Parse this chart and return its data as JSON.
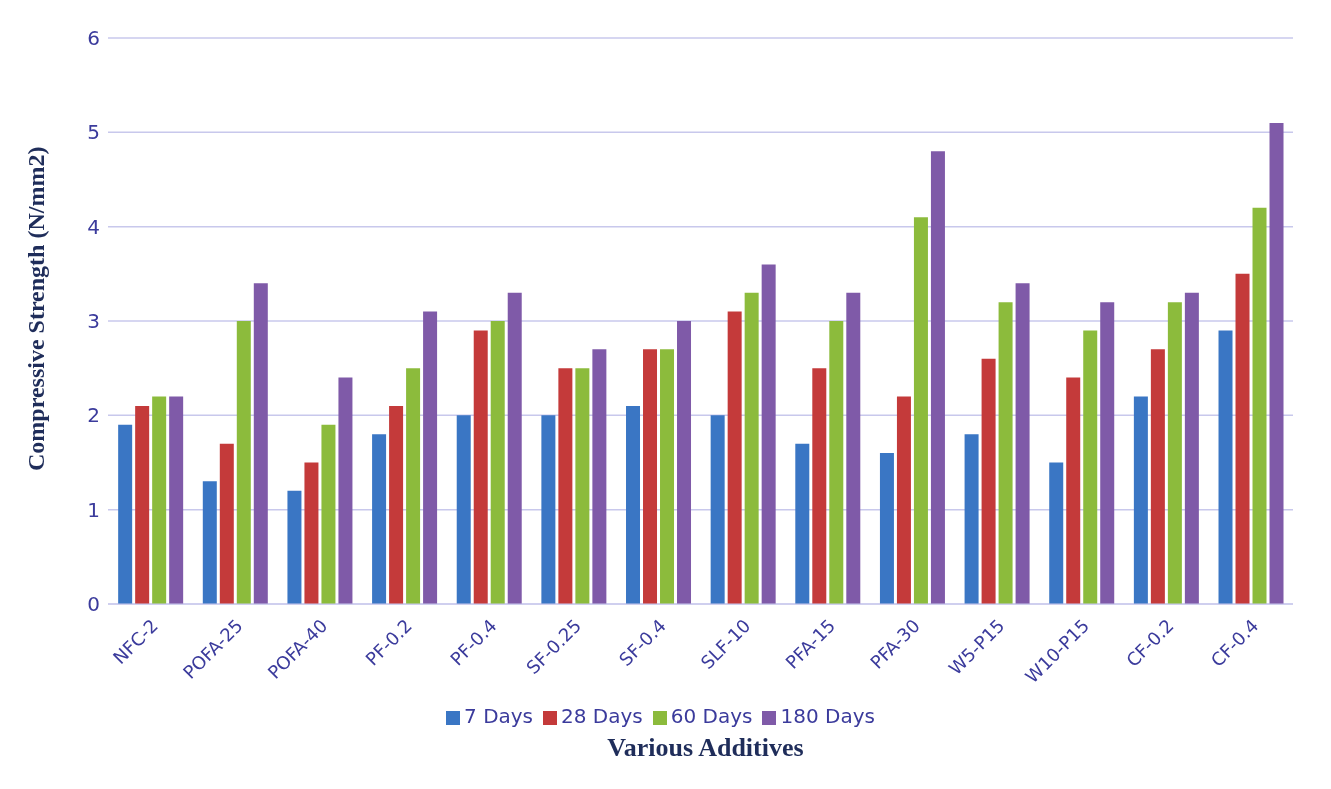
{
  "chart_data": {
    "type": "bar",
    "xlabel": "Various Additives",
    "ylabel": "Compressive Strength (N/mm2)",
    "categories": [
      "NFC-2",
      "POFA-25",
      "POFA-40",
      "PF-0.2",
      "PF-0.4",
      "SF-0.25",
      "SF-0.4",
      "SLF-10",
      "PFA-15",
      "PFA-30",
      "W5-P15",
      "W10-P15",
      "CF-0.2",
      "CF-0.4"
    ],
    "series": [
      {
        "name": "7 Days",
        "color": "#3a76c4",
        "values": [
          1.9,
          1.3,
          1.2,
          1.8,
          2.0,
          2.0,
          2.1,
          2.0,
          1.7,
          1.6,
          1.8,
          1.5,
          2.2,
          2.9
        ]
      },
      {
        "name": "28 Days",
        "color": "#c43a3a",
        "values": [
          2.1,
          1.7,
          1.5,
          2.1,
          2.9,
          2.5,
          2.7,
          3.1,
          2.5,
          2.2,
          2.6,
          2.4,
          2.7,
          3.5
        ]
      },
      {
        "name": "60 Days",
        "color": "#8cbb3c",
        "values": [
          2.2,
          3.0,
          1.9,
          2.5,
          3.0,
          2.5,
          2.7,
          3.3,
          3.0,
          4.1,
          3.2,
          2.9,
          3.2,
          4.2
        ]
      },
      {
        "name": "180 Days",
        "color": "#7f5aa8",
        "values": [
          2.2,
          3.4,
          2.4,
          3.1,
          3.3,
          2.7,
          3.0,
          3.6,
          3.3,
          4.8,
          3.4,
          3.2,
          3.3,
          5.1
        ]
      }
    ],
    "ylim": [
      0,
      6
    ],
    "yticks": [
      0,
      1,
      2,
      3,
      4,
      5,
      6
    ],
    "grid": "y",
    "legend": "bottom"
  }
}
